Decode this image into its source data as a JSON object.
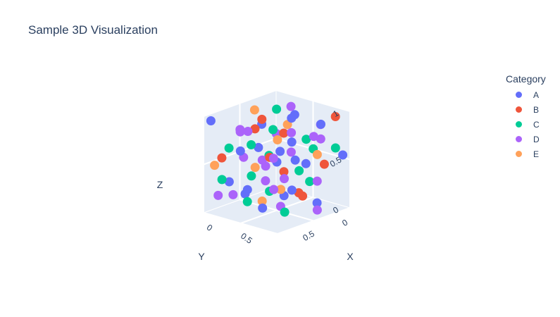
{
  "title": "Sample 3D Visualization",
  "chart_data": {
    "type": "scatter3d",
    "title": "Sample 3D Visualization",
    "axes": {
      "x": {
        "label": "X",
        "range": [
          0,
          1
        ],
        "ticks": [
          "0",
          "0.5"
        ]
      },
      "y": {
        "label": "Y",
        "range": [
          0,
          1
        ],
        "ticks": [
          "0",
          "0.5"
        ]
      },
      "z": {
        "label": "Z",
        "range": [
          0,
          1
        ],
        "ticks": [
          "0",
          "0.5",
          "1"
        ]
      }
    },
    "legend": {
      "title": "Category",
      "placement": "top-right"
    },
    "series": [
      {
        "name": "A",
        "color": "#636efa",
        "points": [
          [
            0.05,
            0.95,
            0.95
          ],
          [
            0.15,
            0.8,
            0.3
          ],
          [
            0.3,
            0.55,
            0.62
          ],
          [
            0.45,
            0.35,
            0.1
          ],
          [
            0.7,
            0.45,
            0.55
          ],
          [
            0.85,
            0.25,
            0.9
          ],
          [
            0.25,
            0.65,
            0.2
          ],
          [
            0.55,
            0.15,
            0.4
          ],
          [
            0.1,
            0.3,
            0.75
          ],
          [
            0.65,
            0.85,
            0.15
          ],
          [
            0.9,
            0.7,
            0.35
          ],
          [
            0.35,
            0.1,
            0.85
          ],
          [
            0.5,
            0.5,
            0.5
          ],
          [
            0.2,
            0.15,
            0.45
          ],
          [
            0.75,
            0.2,
            0.05
          ],
          [
            0.4,
            0.9,
            0.7
          ],
          [
            0.95,
            0.05,
            0.55
          ],
          [
            0.6,
            0.4,
            0.95
          ],
          [
            0.12,
            0.55,
            0.1
          ],
          [
            0.8,
            0.6,
            0.8
          ]
        ]
      },
      {
        "name": "B",
        "color": "#ef553b",
        "points": [
          [
            0.9,
            0.1,
            0.95
          ],
          [
            0.2,
            0.4,
            0.85
          ],
          [
            0.55,
            0.65,
            0.6
          ],
          [
            0.35,
            0.25,
            0.3
          ],
          [
            0.7,
            0.05,
            0.4
          ],
          [
            0.1,
            0.85,
            0.55
          ],
          [
            0.6,
            0.3,
            0.15
          ],
          [
            0.45,
            0.75,
            0.9
          ],
          [
            0.8,
            0.45,
            0.2
          ],
          [
            0.25,
            0.15,
            0.65
          ]
        ]
      },
      {
        "name": "C",
        "color": "#00cc96",
        "points": [
          [
            0.95,
            0.15,
            0.65
          ],
          [
            0.05,
            0.7,
            0.6
          ],
          [
            0.4,
            0.45,
            0.8
          ],
          [
            0.65,
            0.2,
            0.25
          ],
          [
            0.15,
            0.9,
            0.35
          ],
          [
            0.85,
            0.55,
            0.5
          ],
          [
            0.3,
            0.3,
            0.95
          ],
          [
            0.5,
            0.85,
            0.45
          ],
          [
            0.75,
            0.35,
            0.75
          ],
          [
            0.2,
            0.6,
            0.05
          ],
          [
            0.6,
            0.1,
            0.55
          ],
          [
            0.45,
            0.55,
            0.2
          ],
          [
            0.1,
            0.2,
            0.4
          ],
          [
            0.9,
            0.8,
            0.15
          ],
          [
            0.35,
            0.7,
            0.7
          ]
        ]
      },
      {
        "name": "D",
        "color": "#ab63fa",
        "points": [
          [
            0.55,
            0.95,
            0.95
          ],
          [
            0.1,
            0.1,
            0.6
          ],
          [
            0.8,
            0.25,
            0.3
          ],
          [
            0.3,
            0.8,
            0.85
          ],
          [
            0.65,
            0.6,
            0.1
          ],
          [
            0.2,
            0.35,
            0.2
          ],
          [
            0.95,
            0.45,
            0.85
          ],
          [
            0.4,
            0.2,
            0.5
          ],
          [
            0.7,
            0.75,
            0.65
          ],
          [
            0.05,
            0.5,
            0.45
          ],
          [
            0.5,
            0.3,
            0.75
          ],
          [
            0.85,
            0.9,
            0.4
          ],
          [
            0.25,
            0.05,
            0.9
          ],
          [
            0.6,
            0.5,
            0.35
          ],
          [
            0.15,
            0.65,
            0.8
          ],
          [
            0.75,
            0.15,
            0.7
          ],
          [
            0.35,
            0.95,
            0.25
          ],
          [
            0.9,
            0.35,
            0.05
          ],
          [
            0.45,
            0.65,
            0.55
          ],
          [
            0.05,
            0.85,
            0.15
          ],
          [
            0.65,
            0.05,
            0.8
          ],
          [
            0.3,
            0.45,
            0.4
          ]
        ]
      },
      {
        "name": "E",
        "color": "#ffa15a",
        "points": [
          [
            0.95,
            0.95,
            0.95
          ],
          [
            0.3,
            0.15,
            0.75
          ],
          [
            0.7,
            0.65,
            0.3
          ],
          [
            0.15,
            0.45,
            0.95
          ],
          [
            0.55,
            0.85,
            0.55
          ],
          [
            0.85,
            0.3,
            0.6
          ],
          [
            0.4,
            0.6,
            0.1
          ],
          [
            0.1,
            0.95,
            0.5
          ]
        ]
      }
    ]
  }
}
